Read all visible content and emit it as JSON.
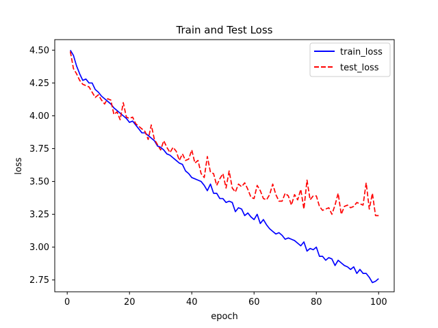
{
  "chart_data": {
    "type": "line",
    "title": "Train and Test Loss",
    "xlabel": "epoch",
    "ylabel": "loss",
    "xlim": [
      -4,
      105
    ],
    "ylim": [
      2.66,
      4.58
    ],
    "xticks": [
      0,
      20,
      40,
      60,
      80,
      100
    ],
    "yticks": [
      2.75,
      3.0,
      3.25,
      3.5,
      3.75,
      4.0,
      4.25,
      4.5
    ],
    "ytick_labels": [
      "2.75",
      "3.00",
      "3.25",
      "3.50",
      "3.75",
      "4.00",
      "4.25",
      "4.50"
    ],
    "grid": false,
    "legend_position": "top-right",
    "x": [
      1,
      2,
      3,
      4,
      5,
      6,
      7,
      8,
      9,
      10,
      11,
      12,
      13,
      14,
      15,
      16,
      17,
      18,
      19,
      20,
      21,
      22,
      23,
      24,
      25,
      26,
      27,
      28,
      29,
      30,
      31,
      32,
      33,
      34,
      35,
      36,
      37,
      38,
      39,
      40,
      41,
      42,
      43,
      44,
      45,
      46,
      47,
      48,
      49,
      50,
      51,
      52,
      53,
      54,
      55,
      56,
      57,
      58,
      59,
      60,
      61,
      62,
      63,
      64,
      65,
      66,
      67,
      68,
      69,
      70,
      71,
      72,
      73,
      74,
      75,
      76,
      77,
      78,
      79,
      80,
      81,
      82,
      83,
      84,
      85,
      86,
      87,
      88,
      89,
      90,
      91,
      92,
      93,
      94,
      95,
      96,
      97,
      98,
      99,
      100
    ],
    "series": [
      {
        "name": "train_loss",
        "color": "#0000ff",
        "dash": "solid",
        "values": [
          4.5,
          4.46,
          4.38,
          4.32,
          4.27,
          4.28,
          4.25,
          4.25,
          4.2,
          4.18,
          4.15,
          4.13,
          4.11,
          4.09,
          4.06,
          4.04,
          4.02,
          4.0,
          3.98,
          3.95,
          3.96,
          3.93,
          3.9,
          3.87,
          3.87,
          3.85,
          3.83,
          3.81,
          3.77,
          3.76,
          3.74,
          3.71,
          3.7,
          3.68,
          3.66,
          3.64,
          3.63,
          3.58,
          3.56,
          3.53,
          3.52,
          3.51,
          3.5,
          3.47,
          3.43,
          3.48,
          3.41,
          3.41,
          3.37,
          3.37,
          3.34,
          3.35,
          3.34,
          3.27,
          3.3,
          3.29,
          3.24,
          3.26,
          3.23,
          3.21,
          3.25,
          3.18,
          3.21,
          3.17,
          3.14,
          3.12,
          3.1,
          3.11,
          3.09,
          3.06,
          3.07,
          3.06,
          3.05,
          3.03,
          3.01,
          3.04,
          2.97,
          2.99,
          2.98,
          3.0,
          2.93,
          2.93,
          2.9,
          2.92,
          2.91,
          2.86,
          2.9,
          2.88,
          2.86,
          2.85,
          2.83,
          2.85,
          2.8,
          2.83,
          2.8,
          2.8,
          2.77,
          2.73,
          2.74,
          2.76
        ]
      },
      {
        "name": "test_loss",
        "color": "#ff0000",
        "dash": "dashed",
        "values": [
          4.49,
          4.36,
          4.32,
          4.27,
          4.24,
          4.23,
          4.22,
          4.18,
          4.14,
          4.16,
          4.12,
          4.09,
          4.13,
          4.12,
          4.01,
          4.03,
          3.97,
          4.1,
          3.99,
          3.98,
          3.99,
          3.94,
          3.92,
          3.9,
          3.88,
          3.82,
          3.93,
          3.82,
          3.78,
          3.74,
          3.81,
          3.76,
          3.72,
          3.76,
          3.73,
          3.66,
          3.71,
          3.66,
          3.67,
          3.74,
          3.64,
          3.66,
          3.56,
          3.53,
          3.69,
          3.57,
          3.56,
          3.47,
          3.52,
          3.56,
          3.45,
          3.58,
          3.45,
          3.42,
          3.48,
          3.46,
          3.49,
          3.44,
          3.38,
          3.37,
          3.47,
          3.43,
          3.37,
          3.36,
          3.4,
          3.48,
          3.4,
          3.35,
          3.35,
          3.41,
          3.39,
          3.32,
          3.4,
          3.36,
          3.44,
          3.29,
          3.51,
          3.36,
          3.39,
          3.39,
          3.31,
          3.28,
          3.29,
          3.3,
          3.25,
          3.32,
          3.41,
          3.25,
          3.31,
          3.32,
          3.3,
          3.31,
          3.34,
          3.33,
          3.32,
          3.49,
          3.29,
          3.41,
          3.24,
          3.24
        ]
      }
    ]
  }
}
